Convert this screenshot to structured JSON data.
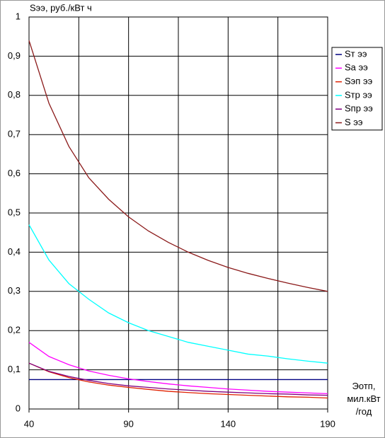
{
  "chart_data": {
    "type": "line",
    "ylabel": "Sээ, руб./кВт ч",
    "xlabel": "Эотп,\nмил.кВт\n/год",
    "x": [
      40,
      50,
      60,
      70,
      80,
      90,
      100,
      110,
      120,
      130,
      140,
      150,
      160,
      170,
      180,
      190
    ],
    "series": [
      {
        "name": "Sт ээ",
        "color": "#000080",
        "values": [
          0.075,
          0.075,
          0.075,
          0.075,
          0.075,
          0.075,
          0.075,
          0.075,
          0.075,
          0.075,
          0.075,
          0.075,
          0.075,
          0.075,
          0.075,
          0.075
        ]
      },
      {
        "name": "Sа ээ",
        "color": "#ff00ff",
        "values": [
          0.17,
          0.134,
          0.113,
          0.097,
          0.086,
          0.077,
          0.07,
          0.064,
          0.059,
          0.055,
          0.051,
          0.048,
          0.045,
          0.043,
          0.041,
          0.039
        ]
      },
      {
        "name": "Sэп ээ",
        "color": "#e02000",
        "values": [
          0.117,
          0.095,
          0.08,
          0.069,
          0.061,
          0.055,
          0.05,
          0.045,
          0.042,
          0.039,
          0.037,
          0.035,
          0.033,
          0.031,
          0.03,
          0.028
        ]
      },
      {
        "name": "Sтр ээ",
        "color": "#00ffff",
        "values": [
          0.47,
          0.38,
          0.32,
          0.28,
          0.245,
          0.22,
          0.2,
          0.185,
          0.17,
          0.16,
          0.15,
          0.14,
          0.135,
          0.128,
          0.122,
          0.117
        ]
      },
      {
        "name": "Sпр ээ",
        "color": "#800080",
        "values": [
          0.117,
          0.096,
          0.083,
          0.073,
          0.065,
          0.059,
          0.055,
          0.051,
          0.048,
          0.045,
          0.043,
          0.041,
          0.039,
          0.038,
          0.036,
          0.035
        ]
      },
      {
        "name": "S ээ",
        "color": "#8b1a1a",
        "values": [
          0.94,
          0.78,
          0.67,
          0.59,
          0.535,
          0.49,
          0.454,
          0.425,
          0.4,
          0.379,
          0.361,
          0.346,
          0.333,
          0.321,
          0.31,
          0.3
        ]
      }
    ],
    "xlim": [
      40,
      190
    ],
    "xticks": [
      40,
      90,
      140,
      190
    ],
    "x_grid_step": 25,
    "ylim": [
      0,
      1
    ],
    "yticks": [
      0,
      {
        "value": 0.1,
        "label": "0,1"
      },
      {
        "value": 0.2,
        "label": "0,2"
      },
      {
        "value": 0.3,
        "label": "0,3"
      },
      {
        "value": 0.4,
        "label": "0,4"
      },
      {
        "value": 0.5,
        "label": "0,5"
      },
      {
        "value": 0.6,
        "label": "0,6"
      },
      {
        "value": 0.7,
        "label": "0,7"
      },
      {
        "value": 0.8,
        "label": "0,8"
      },
      {
        "value": 0.9,
        "label": "0,9"
      },
      1
    ],
    "grid": true,
    "legend": "right"
  }
}
